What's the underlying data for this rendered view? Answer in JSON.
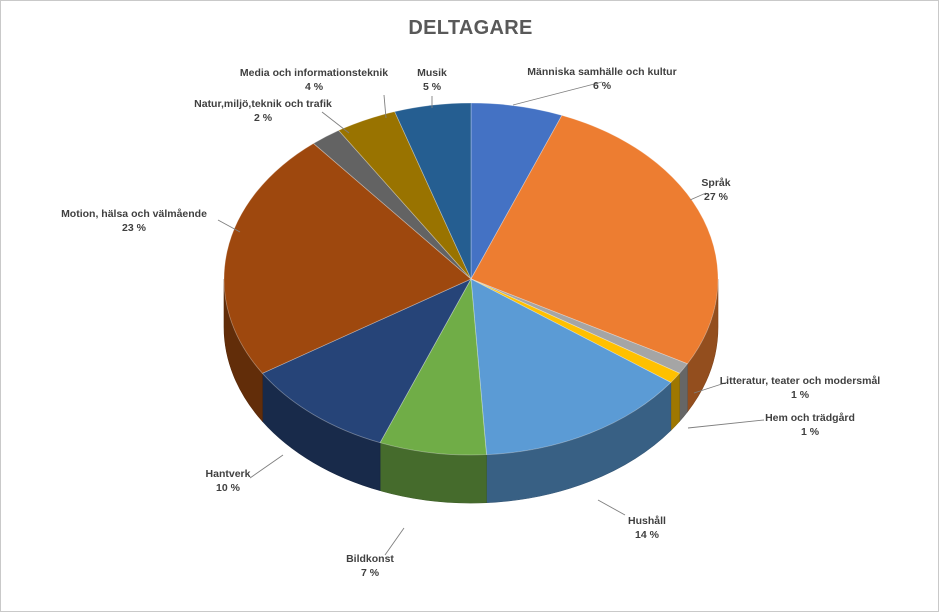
{
  "chart_data": {
    "type": "pie",
    "title": "DELTAGARE",
    "legend": "none",
    "slices": [
      {
        "label": "Människa samhälle och kultur",
        "value": 6,
        "value_label": "6 %",
        "color": "#4472C4"
      },
      {
        "label": "Språk",
        "value": 27,
        "value_label": "27 %",
        "color": "#ED7D31"
      },
      {
        "label": "Litteratur, teater och modersmål",
        "value": 1,
        "value_label": "1 %",
        "color": "#A5A5A5"
      },
      {
        "label": "Hem och trädgård",
        "value": 1,
        "value_label": "1 %",
        "color": "#FFC000"
      },
      {
        "label": "Hushåll",
        "value": 14,
        "value_label": "14 %",
        "color": "#5B9BD5"
      },
      {
        "label": "Bildkonst",
        "value": 7,
        "value_label": "7 %",
        "color": "#70AD47"
      },
      {
        "label": "Hantverk",
        "value": 10,
        "value_label": "10 %",
        "color": "#264478"
      },
      {
        "label": "Motion, hälsa och välmående",
        "value": 23,
        "value_label": "23 %",
        "color": "#9E480E"
      },
      {
        "label": "Natur,miljö,teknik och trafik",
        "value": 2,
        "value_label": "2 %",
        "color": "#636363"
      },
      {
        "label": "Media och informationsteknik",
        "value": 4,
        "value_label": "4 %",
        "color": "#997300"
      },
      {
        "label": "Musik",
        "value": 5,
        "value_label": "5 %",
        "color": "#255E91"
      }
    ]
  }
}
